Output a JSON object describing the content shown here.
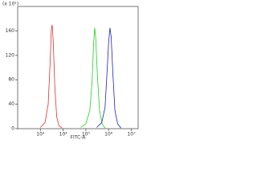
{
  "chart_data": {
    "type": "line",
    "y_note": "(x 10¹)",
    "xlabel": "FITC-A",
    "xscale": "log",
    "xlim": [
      100,
      20000000
    ],
    "ylim": [
      0,
      200
    ],
    "xticks": [
      {
        "value": 1000,
        "label": "10³"
      },
      {
        "value": 10000,
        "label": "10⁴"
      },
      {
        "value": 100000,
        "label": "10⁵"
      },
      {
        "value": 1000000,
        "label": "10⁶"
      },
      {
        "value": 10000000,
        "label": "10⁷"
      }
    ],
    "yticks": [
      0,
      40,
      80,
      120,
      160
    ],
    "series": [
      {
        "color": "#e03030",
        "x": [
          1000,
          1600,
          2200,
          2700,
          3000,
          3300,
          3700,
          4300,
          5200,
          6500,
          9000
        ],
        "values": [
          2,
          10,
          40,
          110,
          160,
          170,
          140,
          70,
          20,
          5,
          1
        ]
      },
      {
        "color": "#20d020",
        "x": [
          60000,
          100000,
          150000,
          190000,
          220000,
          245000,
          270000,
          320000,
          400000,
          520000,
          700000
        ],
        "values": [
          2,
          8,
          30,
          80,
          140,
          165,
          150,
          90,
          30,
          8,
          1
        ]
      },
      {
        "color": "#2020c0",
        "x": [
          300000,
          500000,
          700000,
          850000,
          1000000,
          1150000,
          1300000,
          1550000,
          1900000,
          2500000,
          3500000
        ],
        "values": [
          2,
          10,
          35,
          90,
          140,
          165,
          150,
          90,
          30,
          8,
          1
        ]
      }
    ]
  }
}
